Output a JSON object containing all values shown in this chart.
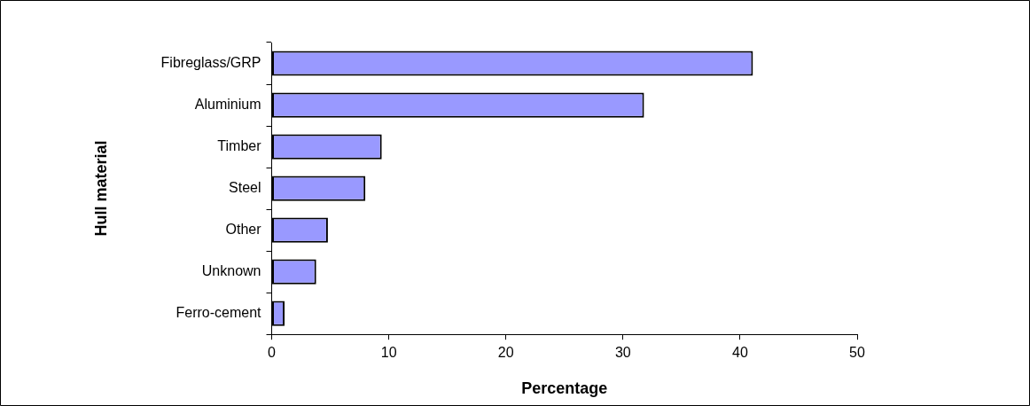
{
  "chart_data": {
    "type": "bar",
    "orientation": "horizontal",
    "xlabel": "Percentage",
    "ylabel": "Hull material",
    "categories": [
      "Fibreglass/GRP",
      "Aluminium",
      "Timber",
      "Steel",
      "Other",
      "Unknown",
      "Ferro-cement"
    ],
    "values": [
      41.1,
      31.8,
      9.4,
      8.0,
      4.8,
      3.8,
      1.1
    ],
    "color": "#9999ff",
    "xlim": [
      0,
      50
    ],
    "xticks": [
      0,
      10,
      20,
      30,
      40,
      50
    ],
    "grid": false,
    "legend": false
  }
}
